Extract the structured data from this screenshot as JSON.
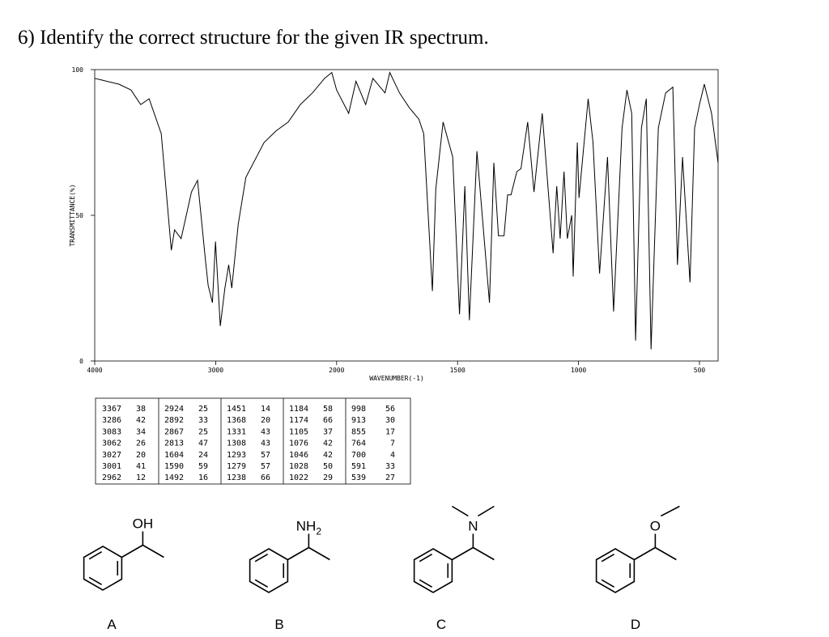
{
  "question": "6) Identify the correct structure for the given IR spectrum.",
  "chart_data": {
    "type": "line",
    "y_label": "TRANSMITTANCE(%)",
    "x_label": "WAVENUMBER(-1)",
    "x": [
      4000,
      3800,
      3700,
      3620,
      3550,
      3450,
      3367,
      3340,
      3286,
      3200,
      3150,
      3083,
      3062,
      3027,
      3001,
      2962,
      2924,
      2892,
      2867,
      2813,
      2750,
      2600,
      2500,
      2400,
      2300,
      2200,
      2100,
      2040,
      2000,
      1950,
      1920,
      1880,
      1850,
      1800,
      1780,
      1740,
      1700,
      1660,
      1640,
      1604,
      1590,
      1560,
      1520,
      1492,
      1470,
      1451,
      1420,
      1368,
      1350,
      1331,
      1308,
      1293,
      1279,
      1255,
      1238,
      1210,
      1184,
      1174,
      1150,
      1105,
      1090,
      1076,
      1060,
      1046,
      1028,
      1022,
      1005,
      998,
      960,
      940,
      913,
      880,
      855,
      820,
      800,
      780,
      764,
      740,
      720,
      700,
      670,
      640,
      610,
      591,
      570,
      539,
      520,
      500,
      480,
      450,
      423
    ],
    "values": [
      97,
      95,
      93,
      88,
      90,
      78,
      38,
      45,
      42,
      58,
      62,
      34,
      26,
      20,
      41,
      12,
      25,
      33,
      25,
      47,
      63,
      75,
      79,
      82,
      88,
      92,
      97,
      99,
      93,
      85,
      96,
      88,
      97,
      92,
      99,
      92,
      87,
      83,
      78,
      24,
      59,
      82,
      70,
      16,
      60,
      14,
      72,
      20,
      68,
      43,
      43,
      57,
      57,
      65,
      66,
      82,
      58,
      66,
      85,
      37,
      60,
      42,
      65,
      42,
      50,
      29,
      75,
      56,
      90,
      75,
      30,
      70,
      17,
      80,
      93,
      85,
      7,
      80,
      90,
      4,
      80,
      92,
      94,
      33,
      70,
      27,
      80,
      88,
      95,
      85,
      68
    ],
    "color": "#000000",
    "xlim": [
      4000,
      423
    ],
    "xticks": [
      4000,
      3000,
      2000,
      1500,
      1000,
      500
    ],
    "ylim": [
      0,
      100
    ],
    "yticks": [
      0,
      50,
      100
    ]
  },
  "peak_table": [
    [
      [
        3367,
        38
      ],
      [
        3286,
        42
      ],
      [
        3083,
        34
      ],
      [
        3062,
        26
      ],
      [
        3027,
        20
      ],
      [
        3001,
        41
      ],
      [
        2962,
        12
      ]
    ],
    [
      [
        2924,
        25
      ],
      [
        2892,
        33
      ],
      [
        2867,
        25
      ],
      [
        2813,
        47
      ],
      [
        1604,
        24
      ],
      [
        1590,
        59
      ],
      [
        1492,
        16
      ]
    ],
    [
      [
        1451,
        14
      ],
      [
        1368,
        20
      ],
      [
        1331,
        43
      ],
      [
        1308,
        43
      ],
      [
        1293,
        57
      ],
      [
        1279,
        57
      ],
      [
        1238,
        66
      ]
    ],
    [
      [
        1184,
        58
      ],
      [
        1174,
        66
      ],
      [
        1105,
        37
      ],
      [
        1076,
        42
      ],
      [
        1046,
        42
      ],
      [
        1028,
        50
      ],
      [
        1022,
        29
      ]
    ],
    [
      [
        998,
        56
      ],
      [
        913,
        30
      ],
      [
        855,
        17
      ],
      [
        764,
        7
      ],
      [
        700,
        4
      ],
      [
        591,
        33
      ],
      [
        539,
        27
      ]
    ]
  ],
  "choices": [
    {
      "letter": "A",
      "group": "OH"
    },
    {
      "letter": "B",
      "group": "NH",
      "group_sub": "2"
    },
    {
      "letter": "C",
      "group": "N"
    },
    {
      "letter": "D",
      "group": "O"
    }
  ]
}
